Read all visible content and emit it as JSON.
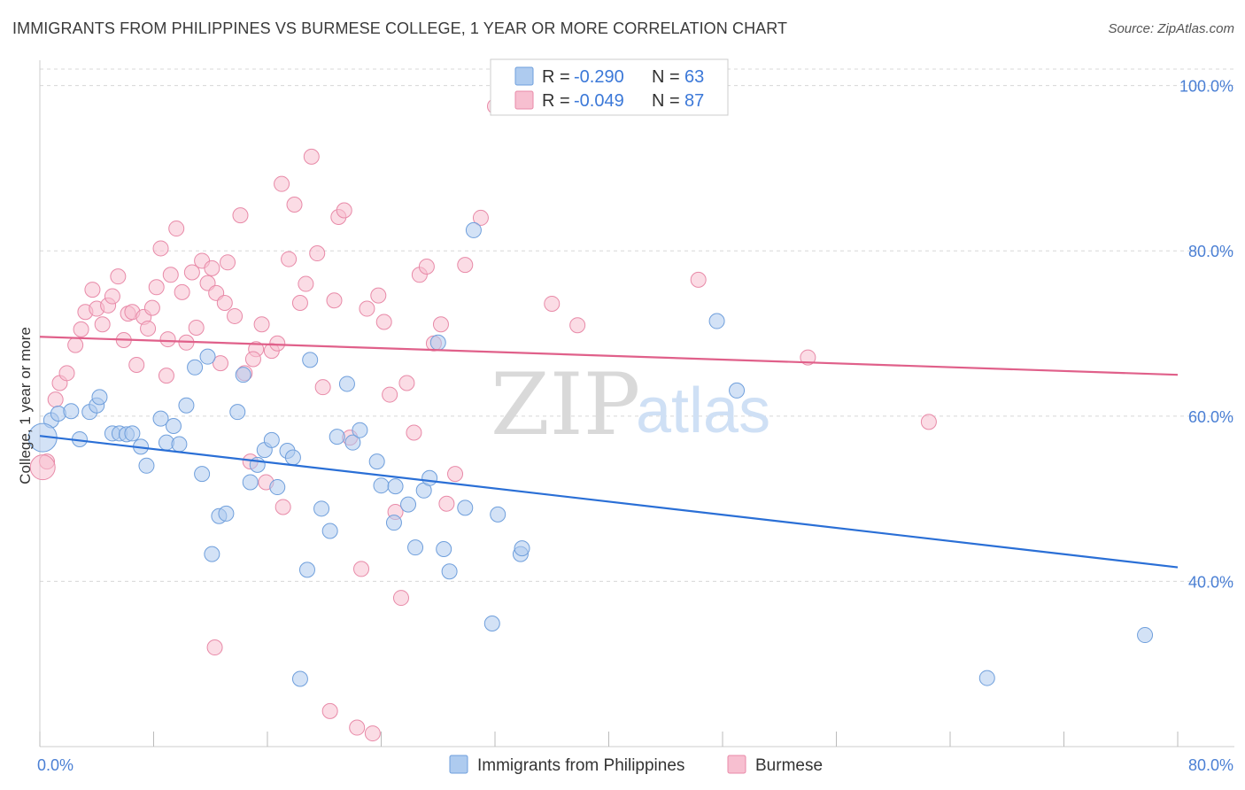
{
  "header": {
    "title": "IMMIGRANTS FROM PHILIPPINES VS BURMESE COLLEGE, 1 YEAR OR MORE CORRELATION CHART",
    "source": "Source: ZipAtlas.com"
  },
  "watermark": {
    "zip": "ZIP",
    "atlas": "atlas"
  },
  "legend_top": [
    {
      "r_label": "R =",
      "r_value": "-0.290",
      "n_label": "N =",
      "n_value": "63"
    },
    {
      "r_label": "R =",
      "r_value": "-0.049",
      "n_label": "N =",
      "n_value": "87"
    }
  ],
  "legend_bottom": [
    {
      "label": "Immigrants from Philippines"
    },
    {
      "label": "Burmese"
    }
  ],
  "colors": {
    "blue_fill": "#aecbef",
    "blue_stroke": "#6f9fdc",
    "blue_line": "#2a6fd6",
    "pink_fill": "#f7bfd0",
    "pink_stroke": "#e88aa8",
    "pink_line": "#e0608a",
    "grid": "#d8d8d8",
    "tick_text": "#4a7fd4"
  },
  "chart_data": {
    "type": "scatter",
    "title": "IMMIGRANTS FROM PHILIPPINES VS BURMESE COLLEGE, 1 YEAR OR MORE CORRELATION CHART",
    "xlabel": "",
    "ylabel": "College, 1 year or more",
    "xlim": [
      0,
      80
    ],
    "ylim": [
      20,
      102
    ],
    "x_tick_labels": [
      "0.0%",
      "80.0%"
    ],
    "y_ticks": [
      40,
      60,
      80,
      100
    ],
    "y_tick_labels": [
      "40.0%",
      "60.0%",
      "80.0%",
      "100.0%"
    ],
    "legend_position": "top-center",
    "series": [
      {
        "name": "Immigrants from Philippines",
        "color": "#aecbef",
        "points": [
          [
            0.8,
            59.5
          ],
          [
            1.3,
            60.3
          ],
          [
            2.2,
            60.6
          ],
          [
            2.8,
            57.2
          ],
          [
            3.5,
            60.5
          ],
          [
            4.0,
            61.3
          ],
          [
            4.2,
            62.3
          ],
          [
            5.1,
            57.9
          ],
          [
            5.6,
            57.9
          ],
          [
            6.1,
            57.8
          ],
          [
            6.5,
            57.9
          ],
          [
            7.1,
            56.3
          ],
          [
            7.5,
            54.0
          ],
          [
            8.5,
            59.7
          ],
          [
            8.9,
            56.8
          ],
          [
            9.4,
            58.8
          ],
          [
            9.8,
            56.6
          ],
          [
            10.3,
            61.3
          ],
          [
            10.9,
            65.9
          ],
          [
            11.4,
            53.0
          ],
          [
            11.8,
            67.2
          ],
          [
            12.1,
            43.3
          ],
          [
            12.6,
            47.9
          ],
          [
            13.1,
            48.2
          ],
          [
            13.9,
            60.5
          ],
          [
            14.3,
            65.0
          ],
          [
            14.8,
            52.0
          ],
          [
            15.3,
            54.1
          ],
          [
            15.8,
            55.9
          ],
          [
            16.3,
            57.1
          ],
          [
            16.7,
            51.4
          ],
          [
            17.4,
            55.8
          ],
          [
            17.8,
            55.0
          ],
          [
            18.3,
            28.2
          ],
          [
            18.8,
            41.4
          ],
          [
            19.0,
            66.8
          ],
          [
            19.8,
            48.8
          ],
          [
            20.4,
            46.1
          ],
          [
            20.9,
            57.5
          ],
          [
            21.6,
            63.9
          ],
          [
            22.0,
            56.8
          ],
          [
            22.5,
            58.3
          ],
          [
            23.7,
            54.5
          ],
          [
            24.0,
            51.6
          ],
          [
            24.9,
            47.1
          ],
          [
            25.0,
            51.5
          ],
          [
            25.9,
            49.3
          ],
          [
            26.4,
            44.1
          ],
          [
            27.0,
            51.0
          ],
          [
            27.4,
            52.5
          ],
          [
            28.0,
            68.9
          ],
          [
            28.4,
            43.9
          ],
          [
            28.8,
            41.2
          ],
          [
            29.9,
            48.9
          ],
          [
            30.5,
            82.5
          ],
          [
            32.2,
            48.1
          ],
          [
            31.8,
            34.9
          ],
          [
            33.8,
            43.3
          ],
          [
            33.9,
            44.0
          ],
          [
            47.6,
            71.5
          ],
          [
            49.0,
            63.1
          ],
          [
            66.6,
            28.3
          ],
          [
            77.7,
            33.5
          ]
        ]
      },
      {
        "name": "Burmese",
        "color": "#f7bfd0",
        "points": [
          [
            0.5,
            54.5
          ],
          [
            1.1,
            62.0
          ],
          [
            1.4,
            64.0
          ],
          [
            1.9,
            65.2
          ],
          [
            2.5,
            68.6
          ],
          [
            2.9,
            70.5
          ],
          [
            3.2,
            72.6
          ],
          [
            3.7,
            75.3
          ],
          [
            4.0,
            73.0
          ],
          [
            4.4,
            71.1
          ],
          [
            4.8,
            73.4
          ],
          [
            5.1,
            74.5
          ],
          [
            5.5,
            76.9
          ],
          [
            5.9,
            69.2
          ],
          [
            6.2,
            72.4
          ],
          [
            6.5,
            72.6
          ],
          [
            6.8,
            66.2
          ],
          [
            7.3,
            72.0
          ],
          [
            7.6,
            70.6
          ],
          [
            7.9,
            73.1
          ],
          [
            8.2,
            75.6
          ],
          [
            8.5,
            80.3
          ],
          [
            8.9,
            64.9
          ],
          [
            9.2,
            77.1
          ],
          [
            9.6,
            82.7
          ],
          [
            10.0,
            75.0
          ],
          [
            10.3,
            68.9
          ],
          [
            10.7,
            77.4
          ],
          [
            11.0,
            70.7
          ],
          [
            11.4,
            78.8
          ],
          [
            11.8,
            76.1
          ],
          [
            12.1,
            77.9
          ],
          [
            12.4,
            74.9
          ],
          [
            12.7,
            66.4
          ],
          [
            13.2,
            78.6
          ],
          [
            13.7,
            72.1
          ],
          [
            14.1,
            84.3
          ],
          [
            14.4,
            65.2
          ],
          [
            14.8,
            54.5
          ],
          [
            15.2,
            68.1
          ],
          [
            15.6,
            71.1
          ],
          [
            15.9,
            52.0
          ],
          [
            16.3,
            67.9
          ],
          [
            16.7,
            68.8
          ],
          [
            17.1,
            49.0
          ],
          [
            17.5,
            79.0
          ],
          [
            17.9,
            85.6
          ],
          [
            18.3,
            73.7
          ],
          [
            18.7,
            76.0
          ],
          [
            19.1,
            91.4
          ],
          [
            19.5,
            79.7
          ],
          [
            19.9,
            63.5
          ],
          [
            20.4,
            24.3
          ],
          [
            21.0,
            84.1
          ],
          [
            21.4,
            84.9
          ],
          [
            21.8,
            57.4
          ],
          [
            22.3,
            22.3
          ],
          [
            22.6,
            41.5
          ],
          [
            23.0,
            73.0
          ],
          [
            23.4,
            21.6
          ],
          [
            23.8,
            74.6
          ],
          [
            24.2,
            71.4
          ],
          [
            24.6,
            62.6
          ],
          [
            25.0,
            48.4
          ],
          [
            25.4,
            38.0
          ],
          [
            25.8,
            64.0
          ],
          [
            26.3,
            58.0
          ],
          [
            26.7,
            77.1
          ],
          [
            27.2,
            78.1
          ],
          [
            27.7,
            68.8
          ],
          [
            28.2,
            71.1
          ],
          [
            28.6,
            49.4
          ],
          [
            29.2,
            53.0
          ],
          [
            29.9,
            78.3
          ],
          [
            31.0,
            84.0
          ],
          [
            32.0,
            97.5
          ],
          [
            36.0,
            73.6
          ],
          [
            37.8,
            71.0
          ],
          [
            46.3,
            76.5
          ],
          [
            54.0,
            67.1
          ],
          [
            62.5,
            59.3
          ],
          [
            12.3,
            32.0
          ],
          [
            15.0,
            66.9
          ],
          [
            17.0,
            88.1
          ],
          [
            20.7,
            74.0
          ],
          [
            9.0,
            69.3
          ],
          [
            13.0,
            73.7
          ]
        ]
      }
    ],
    "trend_lines": [
      {
        "series": "Immigrants from Philippines",
        "x": [
          0,
          80
        ],
        "y": [
          57.6,
          41.7
        ]
      },
      {
        "series": "Burmese",
        "x": [
          0,
          80
        ],
        "y": [
          69.6,
          65.0
        ]
      }
    ]
  }
}
